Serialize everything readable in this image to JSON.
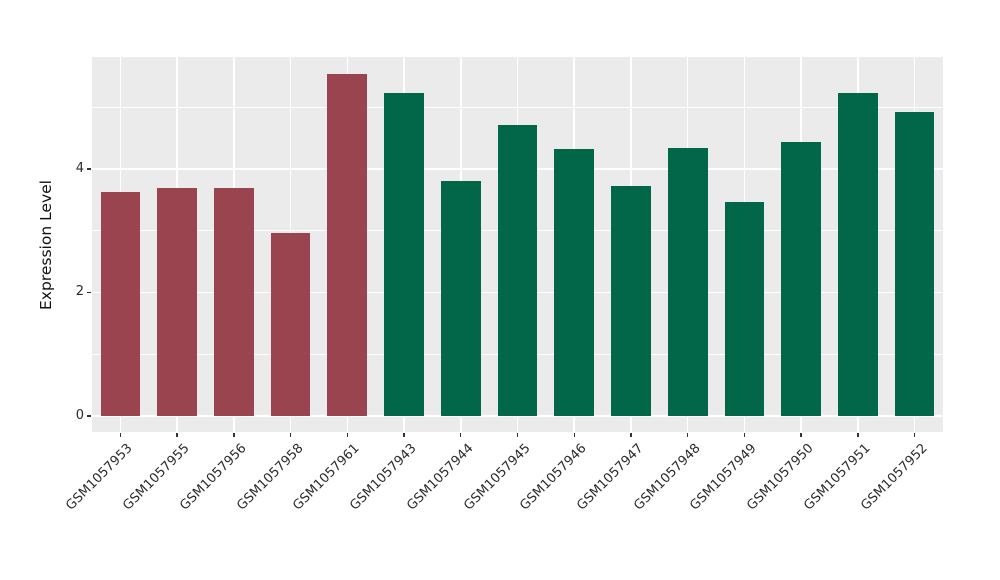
{
  "figure": {
    "background": "#ffffff",
    "title": ""
  },
  "chart_data": {
    "type": "bar",
    "title": "",
    "xlabel": "",
    "ylabel": "Expression Level",
    "legend": "none",
    "grid": "on",
    "panel_background": "#EBEBEB",
    "gridline_color": "#FFFFFF",
    "x_tick_rotation_deg": 45,
    "bar_width_fraction": 0.7,
    "ylim": [
      -0.26,
      5.81
    ],
    "yticks": [
      0,
      2,
      4
    ],
    "y_minor_gridlines": [
      1,
      3,
      5
    ],
    "categories": [
      "GSM1057953",
      "GSM1057955",
      "GSM1057956",
      "GSM1057958",
      "GSM1057961",
      "GSM1057943",
      "GSM1057944",
      "GSM1057945",
      "GSM1057946",
      "GSM1057947",
      "GSM1057948",
      "GSM1057949",
      "GSM1057950",
      "GSM1057951",
      "GSM1057952"
    ],
    "values": [
      3.63,
      3.69,
      3.69,
      2.96,
      5.54,
      5.23,
      3.81,
      4.71,
      4.32,
      3.72,
      4.34,
      3.47,
      4.44,
      5.23,
      4.92
    ],
    "bar_colors": [
      "#9A4450",
      "#9A4450",
      "#9A4450",
      "#9A4450",
      "#9A4450",
      "#016748",
      "#016748",
      "#016748",
      "#016748",
      "#016748",
      "#016748",
      "#016748",
      "#016748",
      "#016748",
      "#016748"
    ],
    "group_colors": {
      "maroon_group": "#9A4450",
      "green_group": "#016748"
    }
  }
}
